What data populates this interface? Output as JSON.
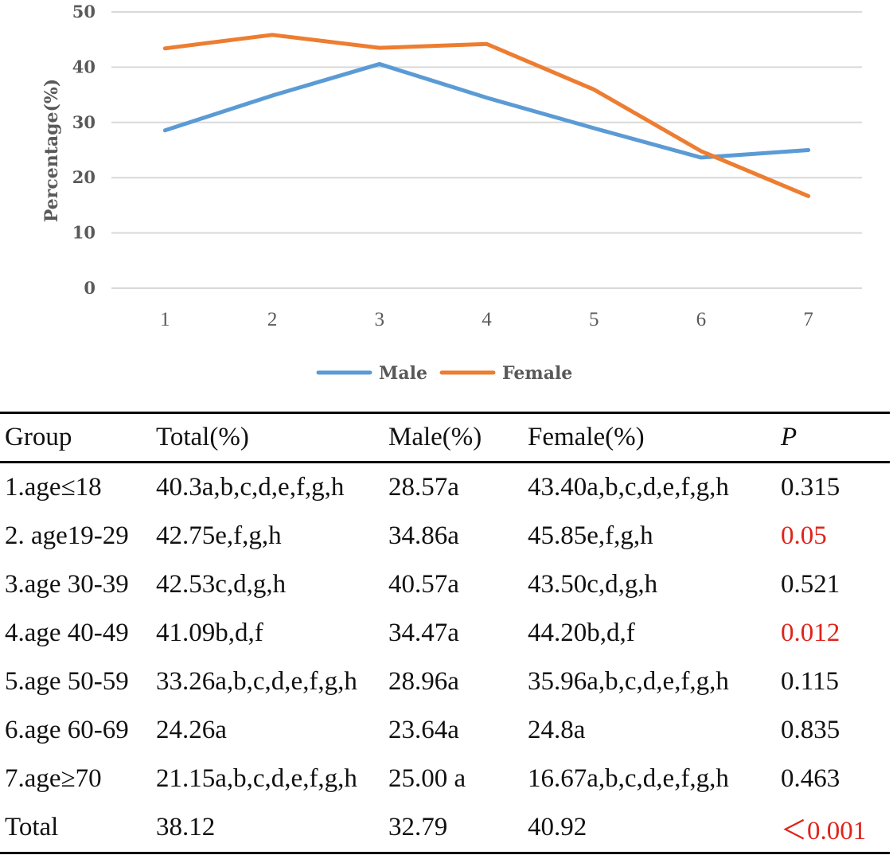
{
  "chart_data": {
    "type": "line",
    "categories": [
      "1",
      "2",
      "3",
      "4",
      "5",
      "6",
      "7"
    ],
    "series": [
      {
        "name": "Male",
        "color": "#5b9bd5",
        "values": [
          28.57,
          34.86,
          40.57,
          34.47,
          28.96,
          23.64,
          25.0
        ]
      },
      {
        "name": "Female",
        "color": "#ed7d31",
        "values": [
          43.4,
          45.85,
          43.5,
          44.2,
          35.96,
          24.8,
          16.67
        ]
      }
    ],
    "ylabel": "Percentage(%)",
    "xlabel": "",
    "ylim": [
      0,
      50
    ],
    "yticks": [
      "0",
      "10",
      "20",
      "30",
      "40",
      "50"
    ],
    "grid": true,
    "legend": "bottom-center"
  },
  "table": {
    "headers": [
      "Group",
      "Total(%)",
      "Male(%)",
      "Female(%)",
      "P"
    ],
    "rows": [
      {
        "group": "1.age≤18",
        "total": "40.3a,b,c,d,e,f,g,h",
        "male": "28.57a",
        "female": "43.40a,b,c,d,e,f,g,h",
        "p": "0.315",
        "significant": false
      },
      {
        "group": "2. age19-29",
        "total": "42.75e,f,g,h",
        "male": "34.86a",
        "female": "45.85e,f,g,h",
        "p": "0.05",
        "significant": true
      },
      {
        "group": "3.age 30-39",
        "total": "42.53c,d,g,h",
        "male": "40.57a",
        "female": "43.50c,d,g,h",
        "p": "0.521",
        "significant": false
      },
      {
        "group": "4.age 40-49",
        "total": "41.09b,d,f",
        "male": "34.47a",
        "female": "44.20b,d,f",
        "p": "0.012",
        "significant": true
      },
      {
        "group": "5.age 50-59",
        "total": "33.26a,b,c,d,e,f,g,h",
        "male": "28.96a",
        "female": "35.96a,b,c,d,e,f,g,h",
        "p": "0.115",
        "significant": false
      },
      {
        "group": "6.age 60-69",
        "total": "24.26a",
        "male": "23.64a",
        "female": "24.8a",
        "p": "0.835",
        "significant": false
      },
      {
        "group": "7.age≥70",
        "total": "21.15a,b,c,d,e,f,g,h",
        "male": "25.00 a",
        "female": "16.67a,b,c,d,e,f,g,h",
        "p": "0.463",
        "significant": false
      },
      {
        "group": "Total",
        "total": "38.12",
        "male": "32.79",
        "female": "40.92",
        "p": "＜0.001",
        "significant": true
      }
    ]
  }
}
